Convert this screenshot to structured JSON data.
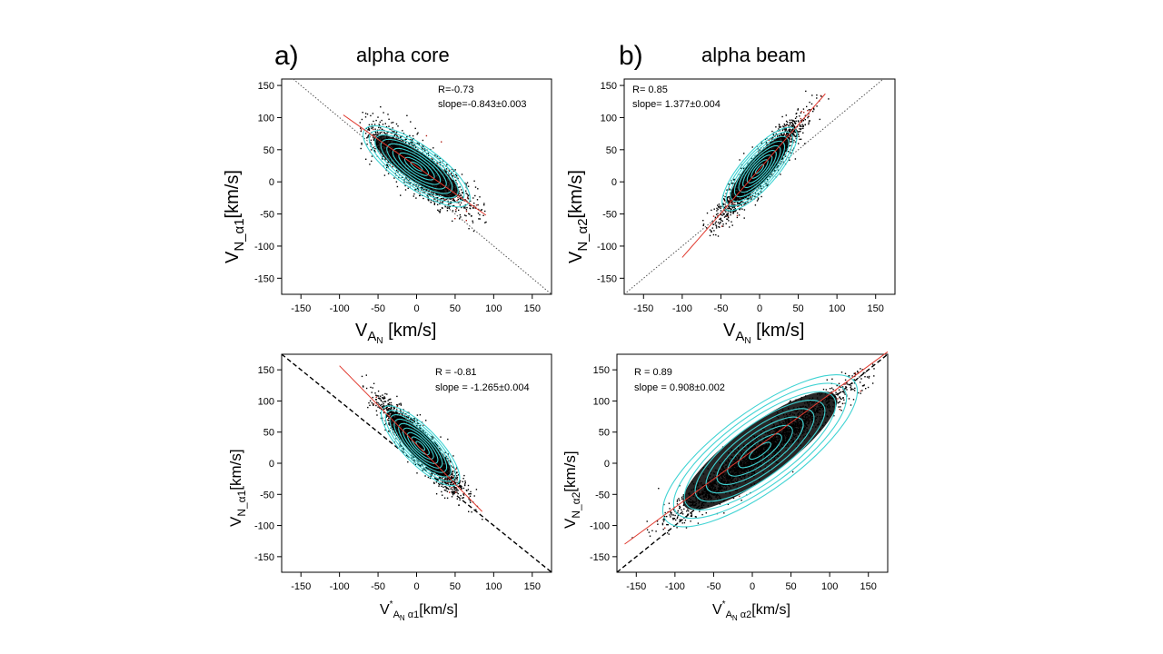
{
  "labels": {
    "a": "a)",
    "b": "b)",
    "title_a": "alpha core",
    "title_b": "alpha beam"
  },
  "colors": {
    "points": "#000000",
    "contours": "#3fd3d3",
    "fit": "#e03a2f",
    "reference": "#555555",
    "dense_red": "#b01e14"
  },
  "chart_data": [
    {
      "type": "scatter",
      "panel": "top-left",
      "xlabel": "V_A_N [km/s]",
      "ylabel": "V_N_α1 [km/s]",
      "xlim": [
        -175,
        175
      ],
      "ylim": [
        -175,
        160
      ],
      "xticks": [
        -150,
        -100,
        -50,
        0,
        50,
        100,
        150
      ],
      "yticks": [
        -150,
        -100,
        -50,
        0,
        50,
        100,
        150
      ],
      "annotations": [
        "R=-0.73",
        "slope=-0.843±0.003"
      ],
      "fit": {
        "slope": -0.843,
        "intercept": 24,
        "x_range": [
          -95,
          90
        ]
      },
      "reference_line": {
        "slope": -1,
        "style": "dotted"
      },
      "cloud": {
        "center": [
          0,
          24
        ],
        "spread_x": 30,
        "spread_y": 18,
        "x_range": [
          -75,
          90
        ],
        "y_range": [
          -90,
          150
        ]
      },
      "contour_center": [
        0,
        24
      ]
    },
    {
      "type": "scatter",
      "panel": "top-right",
      "xlabel": "V_A_N [km/s]",
      "ylabel": "V_N_α2 [km/s]",
      "xlim": [
        -175,
        175
      ],
      "ylim": [
        -175,
        160
      ],
      "xticks": [
        -150,
        -100,
        -50,
        0,
        50,
        100,
        150
      ],
      "yticks": [
        -150,
        -100,
        -50,
        0,
        50,
        100,
        150
      ],
      "annotations": [
        "R= 0.85",
        "slope= 1.377±0.004"
      ],
      "fit": {
        "slope": 1.377,
        "intercept": 20,
        "x_range": [
          -100,
          85
        ]
      },
      "reference_line": {
        "slope": 1,
        "style": "dotted"
      },
      "cloud": {
        "center": [
          0,
          20
        ],
        "spread_x": 25,
        "spread_y": 15,
        "x_range": [
          -75,
          90
        ],
        "y_range": [
          -85,
          160
        ]
      },
      "contour_center": [
        0,
        20
      ]
    },
    {
      "type": "scatter",
      "panel": "bottom-left",
      "xlabel": "V*_A_N α1 [km/s]",
      "ylabel": "V_N_α1 [km/s]",
      "xlim": [
        -175,
        175
      ],
      "ylim": [
        -175,
        175
      ],
      "xticks": [
        -150,
        -100,
        -50,
        0,
        50,
        100,
        150
      ],
      "yticks": [
        -150,
        -100,
        -50,
        0,
        50,
        100,
        150
      ],
      "annotations": [
        "R = -0.81",
        "slope = -1.265±0.004"
      ],
      "fit": {
        "slope": -1.265,
        "intercept": 30,
        "x_range": [
          -100,
          85
        ]
      },
      "reference_line": {
        "slope": -1,
        "style": "dashed"
      },
      "cloud": {
        "center": [
          5,
          28
        ],
        "spread_x": 25,
        "spread_y": 15,
        "x_range": [
          -75,
          90
        ],
        "y_range": [
          -90,
          150
        ]
      },
      "contour_center": [
        5,
        28
      ]
    },
    {
      "type": "scatter",
      "panel": "bottom-right",
      "xlabel": "V*_A_N α2 [km/s]",
      "ylabel": "V_N_α2 [km/s]",
      "xlim": [
        -175,
        175
      ],
      "ylim": [
        -175,
        175
      ],
      "xticks": [
        -150,
        -100,
        -50,
        0,
        50,
        100,
        150
      ],
      "yticks": [
        -150,
        -100,
        -50,
        0,
        50,
        100,
        150
      ],
      "annotations": [
        "R = 0.89",
        "slope = 0.908±0.002"
      ],
      "fit": {
        "slope": 0.908,
        "intercept": 20,
        "x_range": [
          -165,
          175
        ]
      },
      "reference_line": {
        "slope": 1,
        "style": "dashed"
      },
      "cloud": {
        "center": [
          10,
          20
        ],
        "spread_x": 55,
        "spread_y": 15,
        "x_range": [
          -170,
          160
        ],
        "y_range": [
          -120,
          160
        ]
      },
      "contour_center": [
        10,
        20
      ]
    }
  ]
}
